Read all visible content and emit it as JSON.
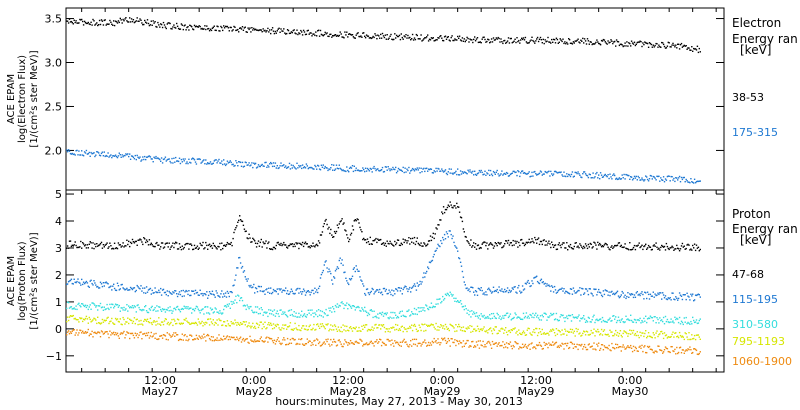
{
  "chart_data": [
    {
      "type": "scatter",
      "panel": "electron",
      "ylabel_lines": [
        "ACE EPAM",
        "log(Electron Flux)",
        "[1/(cm²s ster MeV)]"
      ],
      "ylim": [
        1.55,
        3.62
      ],
      "y_ticks": [
        2.0,
        2.5,
        3.0,
        3.5
      ],
      "y_tick_labels": [
        "2.0",
        "2.5",
        "3.0",
        "3.5"
      ],
      "legend_title_lines": [
        "Electron",
        "Energy ran",
        "[keV]"
      ],
      "series": [
        {
          "name": "38-53",
          "color": "#000000",
          "points": [
            [
              0,
              3.47
            ],
            [
              6,
              3.46
            ],
            [
              8,
              3.5
            ],
            [
              12,
              3.43
            ],
            [
              18,
              3.4
            ],
            [
              24,
              3.38
            ],
            [
              30,
              3.35
            ],
            [
              36,
              3.32
            ],
            [
              42,
              3.3
            ],
            [
              48,
              3.28
            ],
            [
              54,
              3.26
            ],
            [
              60,
              3.26
            ],
            [
              66,
              3.25
            ],
            [
              72,
              3.22
            ],
            [
              78,
              3.2
            ],
            [
              81,
              3.15
            ]
          ]
        },
        {
          "name": "175-315",
          "color": "#1e78d2",
          "points": [
            [
              0,
              2.0
            ],
            [
              6,
              1.95
            ],
            [
              12,
              1.9
            ],
            [
              18,
              1.88
            ],
            [
              24,
              1.84
            ],
            [
              30,
              1.83
            ],
            [
              36,
              1.8
            ],
            [
              42,
              1.79
            ],
            [
              48,
              1.77
            ],
            [
              54,
              1.75
            ],
            [
              60,
              1.74
            ],
            [
              66,
              1.73
            ],
            [
              72,
              1.7
            ],
            [
              78,
              1.68
            ],
            [
              81,
              1.66
            ]
          ]
        }
      ]
    },
    {
      "type": "scatter",
      "panel": "proton",
      "ylabel_lines": [
        "ACE EPAM",
        "log(Proton Flux)",
        "[1/(cm²s ster MeV)]"
      ],
      "ylim": [
        -1.6,
        5.15
      ],
      "y_ticks": [
        -1,
        0,
        1,
        2,
        3,
        4,
        5
      ],
      "y_tick_labels": [
        "−1",
        "0",
        "1",
        "2",
        "3",
        "4",
        "5"
      ],
      "legend_title_lines": [
        "Proton",
        "Energy ran",
        "[keV]"
      ],
      "series": [
        {
          "name": "47-68",
          "color": "#000000",
          "points": [
            [
              0,
              3.15
            ],
            [
              6,
              3.1
            ],
            [
              10,
              3.3
            ],
            [
              12,
              3.1
            ],
            [
              21,
              3.1
            ],
            [
              22,
              4.2
            ],
            [
              23,
              3.5
            ],
            [
              24,
              3.2
            ],
            [
              25,
              3.2
            ],
            [
              26,
              3.1
            ],
            [
              32,
              3.1
            ],
            [
              33,
              4.0
            ],
            [
              34,
              3.5
            ],
            [
              35,
              4.1
            ],
            [
              36,
              3.4
            ],
            [
              37,
              4.1
            ],
            [
              38,
              3.3
            ],
            [
              42,
              3.2
            ],
            [
              44,
              3.3
            ],
            [
              46,
              3.2
            ],
            [
              47,
              3.5
            ],
            [
              48,
              4.4
            ],
            [
              49,
              4.7
            ],
            [
              50,
              4.5
            ],
            [
              51,
              3.4
            ],
            [
              52,
              3.1
            ],
            [
              58,
              3.2
            ],
            [
              60,
              3.3
            ],
            [
              62,
              3.1
            ],
            [
              70,
              3.1
            ],
            [
              81,
              3.05
            ]
          ]
        },
        {
          "name": "115-195",
          "color": "#1e78d2",
          "points": [
            [
              0,
              1.8
            ],
            [
              6,
              1.6
            ],
            [
              12,
              1.4
            ],
            [
              18,
              1.3
            ],
            [
              21,
              1.3
            ],
            [
              22,
              2.6
            ],
            [
              23,
              1.8
            ],
            [
              24,
              1.5
            ],
            [
              26,
              1.4
            ],
            [
              32,
              1.4
            ],
            [
              33,
              2.5
            ],
            [
              34,
              1.8
            ],
            [
              35,
              2.6
            ],
            [
              36,
              1.7
            ],
            [
              37,
              2.4
            ],
            [
              38,
              1.4
            ],
            [
              42,
              1.4
            ],
            [
              45,
              1.6
            ],
            [
              46,
              2.2
            ],
            [
              47,
              2.8
            ],
            [
              48,
              3.4
            ],
            [
              49,
              3.6
            ],
            [
              50,
              2.8
            ],
            [
              51,
              1.5
            ],
            [
              52,
              1.4
            ],
            [
              58,
              1.5
            ],
            [
              60,
              1.9
            ],
            [
              62,
              1.5
            ],
            [
              66,
              1.4
            ],
            [
              70,
              1.3
            ],
            [
              81,
              1.2
            ]
          ]
        },
        {
          "name": "310-580",
          "color": "#33dddd",
          "points": [
            [
              0,
              0.9
            ],
            [
              8,
              0.8
            ],
            [
              12,
              0.75
            ],
            [
              20,
              0.7
            ],
            [
              22,
              1.2
            ],
            [
              23,
              0.8
            ],
            [
              26,
              0.6
            ],
            [
              33,
              0.6
            ],
            [
              35,
              0.9
            ],
            [
              37,
              0.8
            ],
            [
              40,
              0.5
            ],
            [
              44,
              0.6
            ],
            [
              48,
              1.1
            ],
            [
              49,
              1.3
            ],
            [
              50,
              1.0
            ],
            [
              52,
              0.5
            ],
            [
              60,
              0.5
            ],
            [
              66,
              0.4
            ],
            [
              72,
              0.4
            ],
            [
              81,
              0.3
            ]
          ]
        },
        {
          "name": "795-1193",
          "color": "#d6e600",
          "points": [
            [
              0,
              0.4
            ],
            [
              8,
              0.3
            ],
            [
              12,
              0.3
            ],
            [
              20,
              0.25
            ],
            [
              24,
              0.15
            ],
            [
              30,
              0.1
            ],
            [
              36,
              0.05
            ],
            [
              44,
              0.05
            ],
            [
              48,
              0.1
            ],
            [
              52,
              0.0
            ],
            [
              60,
              -0.1
            ],
            [
              66,
              -0.1
            ],
            [
              72,
              -0.15
            ],
            [
              81,
              -0.25
            ]
          ]
        },
        {
          "name": "1060-1900",
          "color": "#ee8a10",
          "points": [
            [
              0,
              -0.1
            ],
            [
              8,
              -0.2
            ],
            [
              12,
              -0.25
            ],
            [
              20,
              -0.3
            ],
            [
              24,
              -0.4
            ],
            [
              30,
              -0.45
            ],
            [
              36,
              -0.5
            ],
            [
              44,
              -0.5
            ],
            [
              48,
              -0.45
            ],
            [
              52,
              -0.55
            ],
            [
              60,
              -0.6
            ],
            [
              66,
              -0.6
            ],
            [
              72,
              -0.7
            ],
            [
              81,
              -0.8
            ]
          ]
        }
      ]
    }
  ],
  "x_axis": {
    "xlim": [
      0,
      84
    ],
    "ticks": [
      {
        "x": 12,
        "line1": "12:00",
        "line2": "May27"
      },
      {
        "x": 24,
        "line1": "0:00",
        "line2": "May28"
      },
      {
        "x": 36,
        "line1": "12:00",
        "line2": "May28"
      },
      {
        "x": 48,
        "line1": "0:00",
        "line2": "May29"
      },
      {
        "x": 60,
        "line1": "12:00",
        "line2": "May29"
      },
      {
        "x": 72,
        "line1": "0:00",
        "line2": "May30"
      }
    ],
    "xlabel": "hours:minutes, May 27, 2013 - May 30, 2013"
  }
}
